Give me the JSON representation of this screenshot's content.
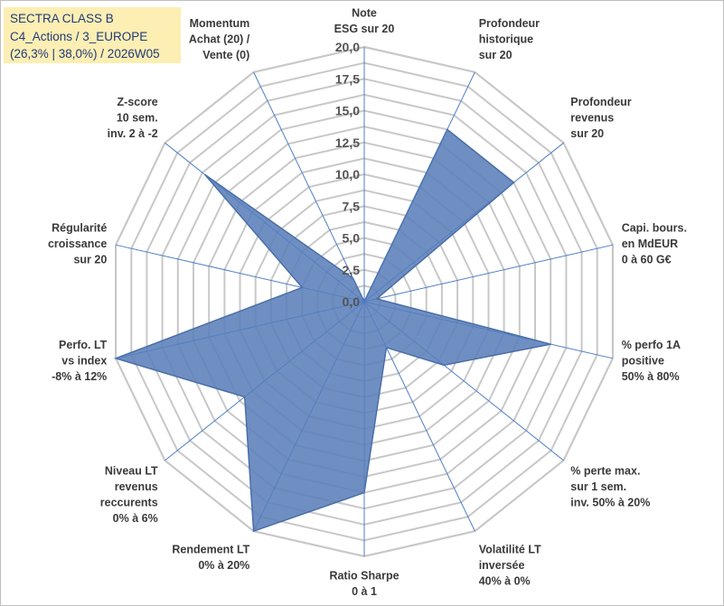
{
  "info_box": {
    "line1": "SECTRA CLASS B",
    "line2": "C4_Actions / 3_EUROPE",
    "line3": "(26,3% | 38,0%) / 2026W05"
  },
  "colors": {
    "fill": "#5b7fb9",
    "stroke": "#4a6ea8",
    "grid": "#c8c8c8",
    "spoke": "#4f7fc6",
    "info_bg": "#fdeeb3",
    "info_text": "#1f3a78"
  },
  "chart_data": {
    "type": "radar",
    "range": [
      0,
      20
    ],
    "ticks": [
      "0,0",
      "2,5",
      "5,0",
      "7,5",
      "10,0",
      "12,5",
      "15,0",
      "17,5",
      "20,0"
    ],
    "tick_values": [
      0,
      2.5,
      5,
      7.5,
      10,
      12.5,
      15,
      17.5,
      20
    ],
    "axes": [
      {
        "name": "note-esg",
        "lines": [
          "Note",
          "ESG sur 20"
        ],
        "value": 0
      },
      {
        "name": "profondeur-historique",
        "lines": [
          "Profondeur",
          "historique",
          "sur 20"
        ],
        "value": 15
      },
      {
        "name": "profondeur-revenus",
        "lines": [
          "Profondeur",
          "revenus",
          "sur 20"
        ],
        "value": 15
      },
      {
        "name": "capi-bours",
        "lines": [
          "Capi. bours.",
          "en MdEUR",
          "0 à 60 G€"
        ],
        "value": 1
      },
      {
        "name": "perfo-1a-positive",
        "lines": [
          "% perfo 1A",
          "positive",
          "50% à 80%"
        ],
        "value": 15
      },
      {
        "name": "perte-max",
        "lines": [
          "% perte max.",
          "sur 1 sem.",
          "inv. 50% à 20%"
        ],
        "value": 8
      },
      {
        "name": "volatilite-lt",
        "lines": [
          "Volatilité LT",
          "inversée",
          "40% à 0%"
        ],
        "value": 4
      },
      {
        "name": "ratio-sharpe",
        "lines": [
          "Ratio Sharpe",
          "0 à 1"
        ],
        "value": 15
      },
      {
        "name": "rendement-lt",
        "lines": [
          "Rendement LT",
          "0% à 20%"
        ],
        "value": 20
      },
      {
        "name": "niveau-lt-revenus",
        "lines": [
          "Niveau LT",
          "revenus",
          "reccurents",
          "0% à 6%"
        ],
        "value": 12
      },
      {
        "name": "perfo-lt-vs-index",
        "lines": [
          "Perfo. LT",
          "vs index",
          "-8% à 12%"
        ],
        "value": 20
      },
      {
        "name": "regularite-croissance",
        "lines": [
          "Régularité",
          "croissance",
          "sur 20"
        ],
        "value": 5
      },
      {
        "name": "z-score",
        "lines": [
          "Z-score",
          "10 sem.",
          "inv. 2 à -2"
        ],
        "value": 16
      },
      {
        "name": "momentum",
        "lines": [
          "Momentum",
          "Achat (20) /",
          "Vente (0)"
        ],
        "value": 2
      }
    ]
  }
}
